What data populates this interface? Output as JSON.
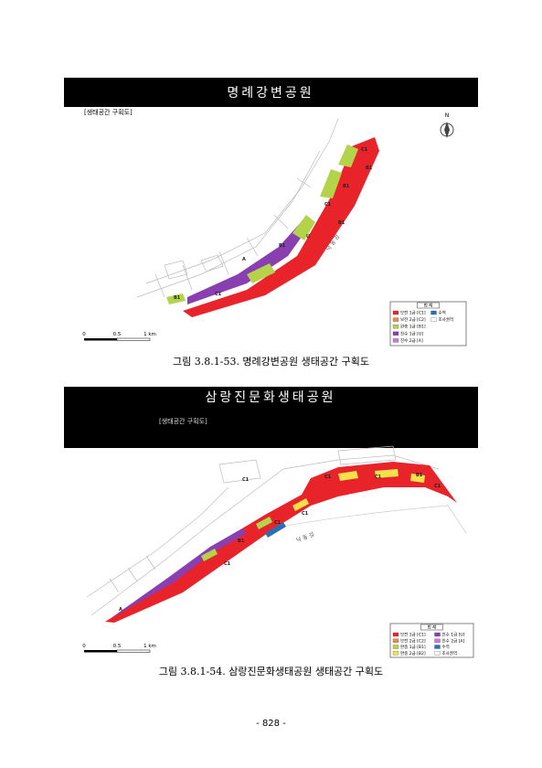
{
  "figures": [
    {
      "title": "명례강변공원",
      "label": "[생태공간 구획도]",
      "legend_title": "범 례",
      "legend": [
        {
          "label": "보전 1급 [C1]",
          "color": "#e8232a"
        },
        {
          "label": "보전 2급 [C2]",
          "color": "#f08a3c"
        },
        {
          "label": "완충 1급 [B1]",
          "color": "#b5d34a"
        },
        {
          "label": "친수 1급 [U]",
          "color": "#8a3fb0"
        },
        {
          "label": "친수 2급 [A]",
          "color": "#c77ae0"
        },
        {
          "label": "수역",
          "color": "#2a6fb5"
        },
        {
          "label": "조사권역",
          "color": "#ffffff"
        }
      ],
      "zones": [
        "C1",
        "B1",
        "B1",
        "C1",
        "B1",
        "U",
        "B1",
        "A",
        "C1",
        "B1"
      ],
      "river": "낙 동 강",
      "scale": [
        "0",
        "0.5",
        "1 km"
      ],
      "north": "N",
      "caption": "그림 3.8.1-53. 명례강변공원 생태공간 구획도"
    },
    {
      "title": "삼랑진문화생태공원",
      "label": "[생태공간 구획도]",
      "legend_title": "범 례",
      "legend": [
        {
          "label": "보전 1급 [C1]",
          "color": "#e8232a"
        },
        {
          "label": "친수 1급 [U]",
          "color": "#8a3fb0"
        },
        {
          "label": "보전 2급 [C2]",
          "color": "#f08a3c"
        },
        {
          "label": "친수 2급 [A]",
          "color": "#c77ae0"
        },
        {
          "label": "완충 1급 [B1]",
          "color": "#b5d34a"
        },
        {
          "label": "수역",
          "color": "#2a6fb5"
        },
        {
          "label": "완충 2급 [B2]",
          "color": "#f2e14a"
        },
        {
          "label": "조사권역",
          "color": "#ffffff"
        }
      ],
      "zones": [
        "C1",
        "C1",
        "C1",
        "B1",
        "C1",
        "C1",
        "C1",
        "B1",
        "C1",
        "A"
      ],
      "river": "낙 동 강",
      "scale": [
        "0",
        "0.5",
        "1 km"
      ],
      "caption": "그림 3.8.1-54. 삼랑진문화생태공원 생태공간 구획도"
    }
  ],
  "page_number": "- 828 -"
}
